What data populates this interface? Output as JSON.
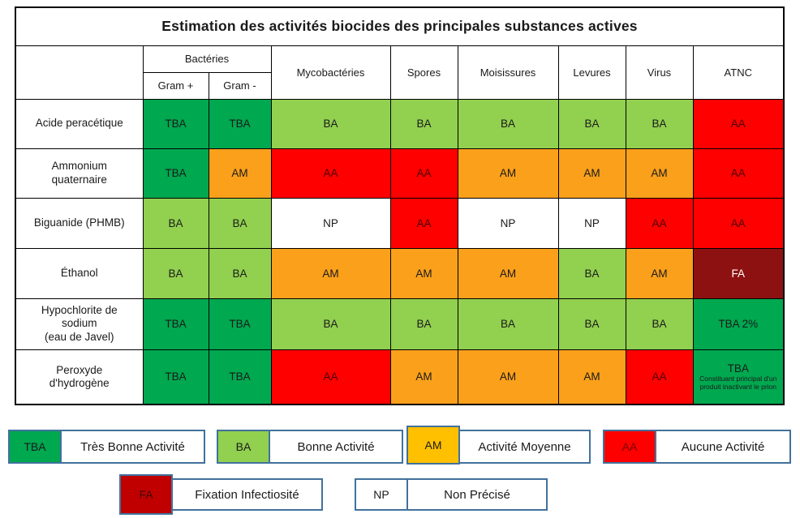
{
  "title": "Estimation des activités biocides des principales substances actives",
  "header": {
    "group": "Bactéries",
    "subcolumns": [
      "Gram +",
      "Gram -"
    ],
    "columns": [
      "Mycobactéries",
      "Spores",
      "Moisissures",
      "Levures",
      "Virus",
      "ATNC"
    ]
  },
  "colors": {
    "TBA": "#00A84F",
    "BA": "#92D050",
    "AM_cell": "#FBA01B",
    "AM_legend": "#FFC000",
    "AA": "#FF0000",
    "FA_cell": "#8E1111",
    "FA_legend": "#C00000",
    "NP": "#FFFFFF",
    "legend_border": "#41719C",
    "table_border": "#000000"
  },
  "rows": [
    {
      "substance": "Acide peracétique",
      "cells": [
        {
          "code": "TBA",
          "color": "TBA"
        },
        {
          "code": "TBA",
          "color": "TBA"
        },
        {
          "code": "BA",
          "color": "BA"
        },
        {
          "code": "BA",
          "color": "BA"
        },
        {
          "code": "BA",
          "color": "BA"
        },
        {
          "code": "BA",
          "color": "BA"
        },
        {
          "code": "BA",
          "color": "BA"
        },
        {
          "code": "AA",
          "color": "AA"
        }
      ]
    },
    {
      "substance": "Ammonium\nquaternaire",
      "cells": [
        {
          "code": "TBA",
          "color": "TBA"
        },
        {
          "code": "AM",
          "color": "AM_cell"
        },
        {
          "code": "AA",
          "color": "AA"
        },
        {
          "code": "AA",
          "color": "AA"
        },
        {
          "code": "AM",
          "color": "AM_cell"
        },
        {
          "code": "AM",
          "color": "AM_cell"
        },
        {
          "code": "AM",
          "color": "AM_cell"
        },
        {
          "code": "AA",
          "color": "AA"
        }
      ]
    },
    {
      "substance": "Biguanide (PHMB)",
      "cells": [
        {
          "code": "BA",
          "color": "BA"
        },
        {
          "code": "BA",
          "color": "BA"
        },
        {
          "code": "NP",
          "color": "NP"
        },
        {
          "code": "AA",
          "color": "AA"
        },
        {
          "code": "NP",
          "color": "NP"
        },
        {
          "code": "NP",
          "color": "NP"
        },
        {
          "code": "AA",
          "color": "AA"
        },
        {
          "code": "AA",
          "color": "AA"
        }
      ]
    },
    {
      "substance": "Éthanol",
      "cells": [
        {
          "code": "BA",
          "color": "BA"
        },
        {
          "code": "BA",
          "color": "BA"
        },
        {
          "code": "AM",
          "color": "AM_cell"
        },
        {
          "code": "AM",
          "color": "AM_cell"
        },
        {
          "code": "AM",
          "color": "AM_cell"
        },
        {
          "code": "BA",
          "color": "BA"
        },
        {
          "code": "AM",
          "color": "AM_cell"
        },
        {
          "code": "FA",
          "color": "FA_cell"
        }
      ]
    },
    {
      "substance": "Hypochlorite de\nsodium\n(eau de Javel)",
      "cells": [
        {
          "code": "TBA",
          "color": "TBA"
        },
        {
          "code": "TBA",
          "color": "TBA"
        },
        {
          "code": "BA",
          "color": "BA"
        },
        {
          "code": "BA",
          "color": "BA"
        },
        {
          "code": "BA",
          "color": "BA"
        },
        {
          "code": "BA",
          "color": "BA"
        },
        {
          "code": "BA",
          "color": "BA"
        },
        {
          "code": "TBA 2%",
          "color": "TBA"
        }
      ]
    },
    {
      "substance": "Peroxyde\nd'hydrogène",
      "cells": [
        {
          "code": "TBA",
          "color": "TBA"
        },
        {
          "code": "TBA",
          "color": "TBA"
        },
        {
          "code": "AA",
          "color": "AA"
        },
        {
          "code": "AM",
          "color": "AM_cell"
        },
        {
          "code": "AM",
          "color": "AM_cell"
        },
        {
          "code": "AM",
          "color": "AM_cell"
        },
        {
          "code": "AA",
          "color": "AA"
        },
        {
          "code": "TBA",
          "note": "Constituant principal d'un produit inactivant le prion",
          "color": "TBA"
        }
      ]
    }
  ],
  "legend": [
    {
      "code": "TBA",
      "label": "Très Bonne Activité",
      "color": "TBA"
    },
    {
      "code": "BA",
      "label": "Bonne Activité",
      "color": "BA"
    },
    {
      "code": "AM",
      "label": "Activité Moyenne",
      "color": "AM_legend"
    },
    {
      "code": "AA",
      "label": "Aucune Activité",
      "color": "AA"
    },
    {
      "code": "FA",
      "label": "Fixation Infectiosité",
      "color": "FA_legend"
    },
    {
      "code": "NP",
      "label": "Non Précisé",
      "color": "NP"
    }
  ]
}
